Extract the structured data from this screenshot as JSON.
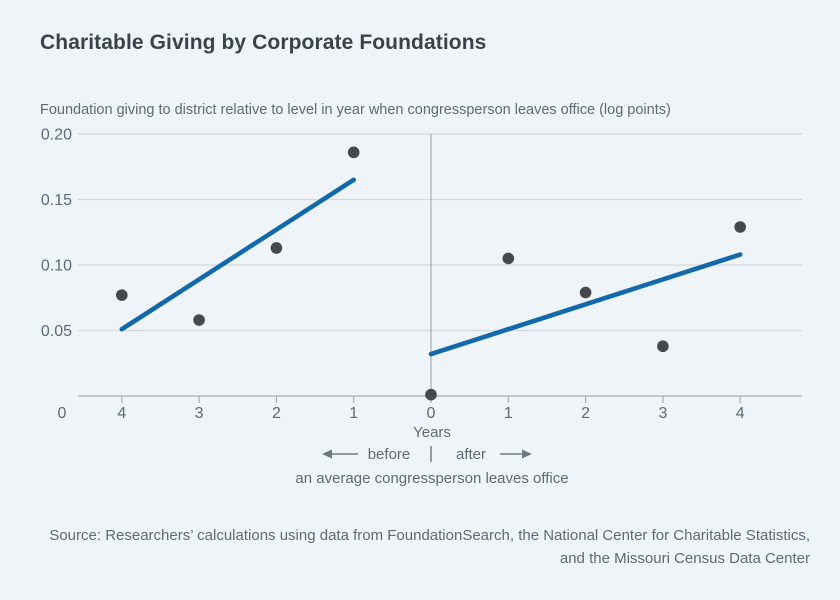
{
  "colors": {
    "background": "#eff4f9",
    "accent_blue": "#1169ab",
    "dot_gray": "#46494c",
    "grid_light": "#d3d8dc",
    "axis_gray": "#a7adb3",
    "title_text": "#3b4249",
    "body_text": "#5e6a74",
    "arrow_gray": "#6e7780"
  },
  "chart_data": {
    "type": "scatter",
    "title": "Charitable Giving by Corporate Foundations",
    "axis_note": "Foundation giving to district relative to level in year when congressperson leaves office (log points)",
    "x_years": [
      -4,
      -3,
      -2,
      -1,
      0,
      1,
      2,
      3,
      4
    ],
    "x_tick_labels": [
      "4",
      "3",
      "2",
      "1",
      "0",
      "1",
      "2",
      "3",
      "4"
    ],
    "series": [
      {
        "name": "foundation-giving-points",
        "type": "scatter",
        "x": [
          -4,
          -3,
          -2,
          -1,
          0,
          1,
          2,
          3,
          4
        ],
        "y": [
          0.077,
          0.058,
          0.113,
          0.186,
          0.001,
          0.105,
          0.079,
          0.038,
          0.129
        ]
      },
      {
        "name": "trend-before",
        "type": "line",
        "x": [
          -4,
          -1
        ],
        "y": [
          0.051,
          0.165
        ]
      },
      {
        "name": "trend-after",
        "type": "line",
        "x": [
          0,
          4
        ],
        "y": [
          0.032,
          0.108
        ]
      }
    ],
    "ylim": [
      0,
      0.2
    ],
    "yticks": [
      0,
      0.05,
      0.1,
      0.15,
      0.2
    ],
    "ytick_labels": [
      "0",
      "0.05",
      "0.10",
      "0.15",
      "0.20"
    ],
    "xlabel": "Years",
    "direction_before": "before",
    "direction_after": "after",
    "xlabel_note": "an average congressperson leaves office",
    "grid": true,
    "legend": "none"
  },
  "footer": {
    "source_line1": "Source: Researchers’ calculations using data from FoundationSearch, the National Center for Charitable Statistics,",
    "source_line2": "and the Missouri Census Data Center"
  }
}
